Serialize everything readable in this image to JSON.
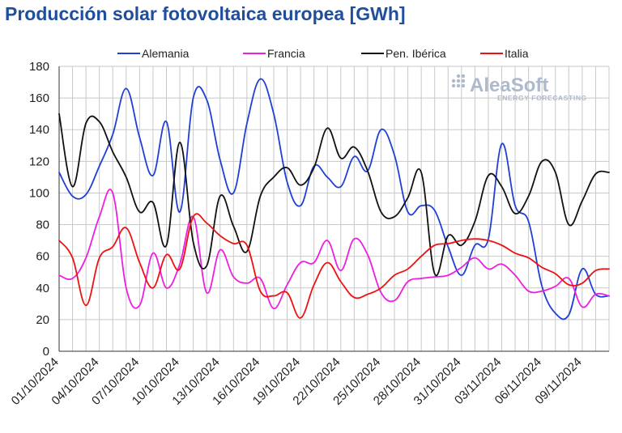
{
  "chart_data": {
    "type": "line",
    "title": "Producción solar fotovoltaica europea [GWh]",
    "xlabel": "",
    "ylabel": "",
    "ylim": [
      0,
      180
    ],
    "yticks": [
      0,
      20,
      40,
      60,
      80,
      100,
      120,
      140,
      160,
      180
    ],
    "grid": true,
    "legend_position": "top",
    "x": [
      "01/10/2024",
      "02/10/2024",
      "03/10/2024",
      "04/10/2024",
      "05/10/2024",
      "06/10/2024",
      "07/10/2024",
      "08/10/2024",
      "09/10/2024",
      "10/10/2024",
      "11/10/2024",
      "12/10/2024",
      "13/10/2024",
      "14/10/2024",
      "15/10/2024",
      "16/10/2024",
      "17/10/2024",
      "18/10/2024",
      "19/10/2024",
      "20/10/2024",
      "21/10/2024",
      "22/10/2024",
      "23/10/2024",
      "24/10/2024",
      "25/10/2024",
      "26/10/2024",
      "27/10/2024",
      "28/10/2024",
      "29/10/2024",
      "30/10/2024",
      "31/10/2024",
      "01/11/2024",
      "02/11/2024",
      "03/11/2024",
      "04/11/2024",
      "05/11/2024",
      "06/11/2024",
      "07/11/2024",
      "08/11/2024",
      "09/11/2024",
      "10/11/2024",
      "11/11/2024"
    ],
    "xtick_labels": [
      "01/10/2024",
      "04/10/2024",
      "07/10/2024",
      "10/10/2024",
      "13/10/2024",
      "16/10/2024",
      "19/10/2024",
      "22/10/2024",
      "25/10/2024",
      "28/10/2024",
      "31/10/2024",
      "03/11/2024",
      "06/11/2024",
      "09/11/2024"
    ],
    "series": [
      {
        "name": "Alemania",
        "color": "#1f3fd6",
        "values": [
          113,
          98,
          99,
          117,
          137,
          166,
          135,
          111,
          145,
          88,
          160,
          159,
          121,
          100,
          144,
          172,
          150,
          107,
          92,
          117,
          110,
          104,
          123,
          114,
          140,
          124,
          88,
          92,
          89,
          66,
          48,
          67,
          71,
          131,
          92,
          82,
          41,
          24,
          23,
          52,
          36,
          35
        ]
      },
      {
        "name": "Francia",
        "color": "#ee1ee0",
        "values": [
          48,
          46,
          59,
          85,
          100,
          40,
          29,
          62,
          40,
          55,
          85,
          37,
          64,
          47,
          43,
          46,
          27,
          42,
          56,
          56,
          70,
          51,
          71,
          61,
          37,
          32,
          44,
          46,
          47,
          48,
          53,
          59,
          52,
          55,
          48,
          38,
          38,
          41,
          46,
          28,
          36,
          35
        ]
      },
      {
        "name": "Pen. Ibérica",
        "color": "#111111",
        "values": [
          150,
          104,
          144,
          145,
          126,
          110,
          88,
          94,
          67,
          132,
          69,
          54,
          98,
          79,
          63,
          98,
          110,
          116,
          105,
          116,
          141,
          122,
          129,
          114,
          88,
          85,
          97,
          113,
          49,
          73,
          67,
          82,
          111,
          104,
          87,
          98,
          120,
          113,
          80,
          95,
          112,
          113
        ]
      },
      {
        "name": "Italia",
        "color": "#ee1111",
        "values": [
          70,
          59,
          29,
          59,
          66,
          78,
          56,
          40,
          61,
          52,
          85,
          81,
          73,
          68,
          67,
          38,
          35,
          37,
          21,
          42,
          56,
          44,
          34,
          36,
          40,
          48,
          52,
          60,
          67,
          68,
          70,
          71,
          70,
          67,
          62,
          59,
          53,
          49,
          42,
          43,
          51,
          52
        ]
      }
    ]
  },
  "watermark": {
    "brand": "AleaSoft",
    "tagline": "ENERGY FORECASTING",
    "color": "#aeb9cc"
  }
}
